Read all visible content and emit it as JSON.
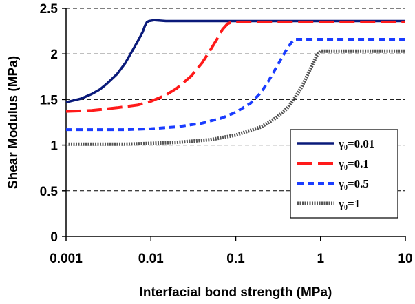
{
  "chart_data": {
    "type": "line",
    "xlabel": "Interfacial bond strength (MPa)",
    "ylabel": "Shear Modulus (MPa)",
    "xscale": "log",
    "xlim": [
      0.001,
      10
    ],
    "ylim": [
      0,
      2.5
    ],
    "x_ticks": [
      "0.001",
      "0.01",
      "0.1",
      "1",
      "10"
    ],
    "y_ticks": [
      "0",
      "0.5",
      "1",
      "1.5",
      "2",
      "2.5"
    ],
    "grid": "horizontal dashed",
    "legend_position": "bottom-right",
    "series": [
      {
        "name": "γ0=0.01",
        "legend_main": "γ",
        "legend_sub": "0",
        "legend_rest": "=0.01",
        "color": "#0a1a7a",
        "style": "solid",
        "points": [
          [
            0.001,
            1.47
          ],
          [
            0.0015,
            1.51
          ],
          [
            0.002,
            1.56
          ],
          [
            0.0025,
            1.61
          ],
          [
            0.003,
            1.67
          ],
          [
            0.004,
            1.78
          ],
          [
            0.005,
            1.9
          ],
          [
            0.006,
            2.03
          ],
          [
            0.007,
            2.14
          ],
          [
            0.008,
            2.24
          ],
          [
            0.0085,
            2.31
          ],
          [
            0.009,
            2.35
          ],
          [
            0.0095,
            2.36
          ],
          [
            0.011,
            2.37
          ],
          [
            0.015,
            2.36
          ],
          [
            0.03,
            2.36
          ],
          [
            0.1,
            2.36
          ],
          [
            1,
            2.36
          ],
          [
            10,
            2.36
          ]
        ]
      },
      {
        "name": "γ0=0.1",
        "legend_main": "γ",
        "legend_sub": "0",
        "legend_rest": "=0.1",
        "color": "#ff1a1a",
        "style": "long-dash",
        "points": [
          [
            0.001,
            1.37
          ],
          [
            0.002,
            1.38
          ],
          [
            0.004,
            1.41
          ],
          [
            0.007,
            1.44
          ],
          [
            0.01,
            1.48
          ],
          [
            0.015,
            1.55
          ],
          [
            0.02,
            1.62
          ],
          [
            0.03,
            1.76
          ],
          [
            0.04,
            1.9
          ],
          [
            0.05,
            2.04
          ],
          [
            0.06,
            2.16
          ],
          [
            0.07,
            2.27
          ],
          [
            0.08,
            2.33
          ],
          [
            0.09,
            2.35
          ],
          [
            0.1,
            2.35
          ],
          [
            0.2,
            2.35
          ],
          [
            1,
            2.35
          ],
          [
            10,
            2.35
          ]
        ]
      },
      {
        "name": "γ0=0.5",
        "legend_main": "γ",
        "legend_sub": "0",
        "legend_rest": "=0.5",
        "color": "#1a3cff",
        "style": "short-dash",
        "points": [
          [
            0.001,
            1.17
          ],
          [
            0.005,
            1.17
          ],
          [
            0.01,
            1.18
          ],
          [
            0.02,
            1.2
          ],
          [
            0.04,
            1.24
          ],
          [
            0.07,
            1.3
          ],
          [
            0.1,
            1.36
          ],
          [
            0.15,
            1.46
          ],
          [
            0.2,
            1.58
          ],
          [
            0.25,
            1.72
          ],
          [
            0.3,
            1.85
          ],
          [
            0.35,
            1.96
          ],
          [
            0.4,
            2.05
          ],
          [
            0.45,
            2.12
          ],
          [
            0.5,
            2.16
          ],
          [
            0.6,
            2.16
          ],
          [
            1,
            2.16
          ],
          [
            10,
            2.16
          ]
        ]
      },
      {
        "name": "γ0=1",
        "legend_main": "γ",
        "legend_sub": "0",
        "legend_rest": "=1",
        "color": "#555555",
        "style": "hatched",
        "points": [
          [
            0.001,
            1.01
          ],
          [
            0.005,
            1.01
          ],
          [
            0.01,
            1.02
          ],
          [
            0.02,
            1.03
          ],
          [
            0.05,
            1.06
          ],
          [
            0.1,
            1.11
          ],
          [
            0.2,
            1.2
          ],
          [
            0.3,
            1.3
          ],
          [
            0.4,
            1.4
          ],
          [
            0.5,
            1.52
          ],
          [
            0.6,
            1.64
          ],
          [
            0.7,
            1.77
          ],
          [
            0.8,
            1.88
          ],
          [
            0.9,
            1.98
          ],
          [
            1,
            2.03
          ],
          [
            1.5,
            2.03
          ],
          [
            10,
            2.03
          ]
        ]
      }
    ]
  }
}
